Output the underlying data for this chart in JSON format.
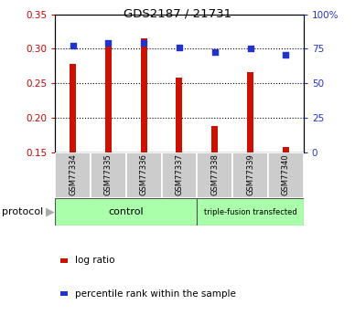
{
  "title": "GDS2187 / 21731",
  "samples": [
    "GSM77334",
    "GSM77335",
    "GSM77336",
    "GSM77337",
    "GSM77338",
    "GSM77339",
    "GSM77340"
  ],
  "log_ratio": [
    0.278,
    0.312,
    0.315,
    0.259,
    0.189,
    0.267,
    0.158
  ],
  "percentile_rank": [
    77.5,
    79.0,
    79.5,
    76.0,
    72.5,
    75.0,
    71.0
  ],
  "ctrl_count": 4,
  "tf_count": 3,
  "bar_color": "#cc1100",
  "dot_color": "#2233cc",
  "ylim_left": [
    0.15,
    0.35
  ],
  "ylim_right": [
    0,
    100
  ],
  "yticks_left": [
    0.15,
    0.2,
    0.25,
    0.3,
    0.35
  ],
  "yticks_right": [
    0,
    25,
    50,
    75,
    100
  ],
  "grid_values": [
    0.2,
    0.25,
    0.3
  ],
  "bar_width": 0.18,
  "left_color": "#cc0000",
  "right_color": "#2233cc",
  "sample_box_color": "#cccccc",
  "proto_green": "#aaffaa",
  "ctrl_label": "control",
  "tf_label": "triple-fusion transfected",
  "protocol_text": "protocol",
  "legend_items": [
    {
      "label": "log ratio",
      "color": "#cc1100"
    },
    {
      "label": "percentile rank within the sample",
      "color": "#2233cc"
    }
  ]
}
